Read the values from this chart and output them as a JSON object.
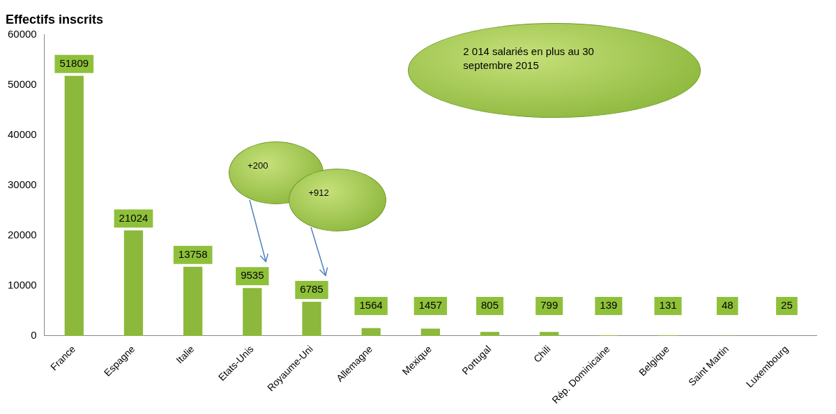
{
  "chart_data": {
    "type": "bar",
    "title": "Effectifs inscrits",
    "categories": [
      "France",
      "Espagne",
      "Italie",
      "Etats-Unis",
      "Royaume-Uni",
      "Allemagne",
      "Mexique",
      "Portugal",
      "Chili",
      "Rép. Dominicaine",
      "Belgique",
      "Saint Martin",
      "Luxembourg"
    ],
    "values": [
      51809,
      21024,
      13758,
      9535,
      6785,
      1564,
      1457,
      805,
      799,
      139,
      131,
      48,
      25
    ],
    "color": "#8cb83c",
    "ylim": [
      0,
      60000
    ],
    "yticks": [
      0,
      10000,
      20000,
      30000,
      40000,
      50000,
      60000
    ],
    "grid": false,
    "legend": false,
    "data_labels": true,
    "annotations": [
      "2 014 salariés en plus au 30 septembre 2015",
      "+200",
      "+912"
    ]
  }
}
